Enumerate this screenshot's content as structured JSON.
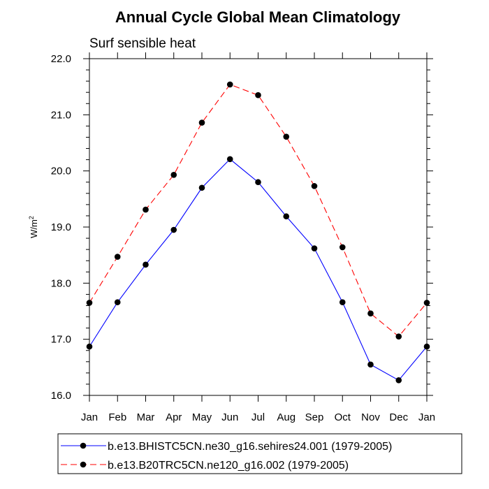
{
  "chart_data": {
    "type": "line",
    "title": "Annual Cycle Global Mean Climatology",
    "subtitle": "Surf sensible heat",
    "xlabel": "",
    "ylabel": "W/m",
    "ylabel_superscript": "2",
    "categories": [
      "Jan",
      "Feb",
      "Mar",
      "Apr",
      "May",
      "Jun",
      "Jul",
      "Aug",
      "Sep",
      "Oct",
      "Nov",
      "Dec",
      "Jan"
    ],
    "ylim": [
      16.0,
      22.0
    ],
    "yticks": [
      "16.0",
      "17.0",
      "18.0",
      "19.0",
      "20.0",
      "21.0",
      "22.0"
    ],
    "grid": false,
    "legend_position": "bottom",
    "series": [
      {
        "name": "b.e13.BHISTC5CN.ne30_g16.sehires24.001 (1979-2005)",
        "color": "#0000ff",
        "style": "solid",
        "values": [
          16.87,
          17.66,
          18.33,
          18.95,
          19.7,
          20.21,
          19.8,
          19.19,
          18.62,
          17.66,
          16.55,
          16.27,
          16.87
        ]
      },
      {
        "name": "b.e13.B20TRC5CN.ne120_g16.002 (1979-2005)",
        "color": "#ff0000",
        "style": "dashed",
        "values": [
          17.65,
          18.47,
          19.31,
          19.93,
          20.86,
          21.54,
          21.35,
          20.61,
          19.73,
          18.64,
          17.46,
          17.05,
          17.65
        ]
      }
    ]
  }
}
